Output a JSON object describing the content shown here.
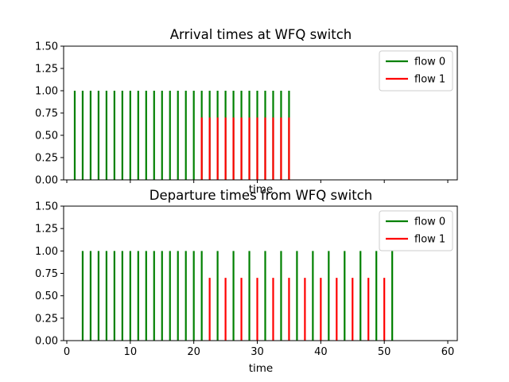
{
  "chart_data": [
    {
      "type": "line",
      "subtype": "vertical-lines",
      "title": "Arrival times at WFQ switch",
      "xlabel": "time",
      "ylabel": "",
      "xlim": [
        -0.5,
        61.5
      ],
      "ylim": [
        0,
        1.5
      ],
      "xticks": [
        0,
        10,
        20,
        30,
        40,
        50,
        60
      ],
      "show_xtick_labels": false,
      "yticks": [
        "0.00",
        "0.25",
        "0.50",
        "0.75",
        "1.00",
        "1.25",
        "1.50"
      ],
      "grid": false,
      "legend_position": "top-right",
      "series": [
        {
          "name": "flow 0",
          "color": "#008000",
          "height": 1.0,
          "x": [
            1.25,
            2.5,
            3.75,
            5.0,
            6.25,
            7.5,
            8.75,
            10.0,
            11.25,
            12.5,
            13.75,
            15.0,
            16.25,
            17.5,
            18.75,
            20.0,
            21.25,
            22.5,
            23.75,
            25.0,
            26.25,
            27.5,
            28.75,
            30.0,
            31.25,
            32.5,
            33.75,
            35.0
          ]
        },
        {
          "name": "flow 1",
          "color": "#ff0000",
          "height": 0.7,
          "x": [
            21.25,
            22.5,
            23.75,
            25.0,
            26.25,
            27.5,
            28.75,
            30.0,
            31.25,
            32.5,
            33.75,
            35.0
          ]
        }
      ]
    },
    {
      "type": "line",
      "subtype": "vertical-lines",
      "title": "Departure times from WFQ switch",
      "xlabel": "time",
      "ylabel": "",
      "xlim": [
        -0.5,
        61.5
      ],
      "ylim": [
        0,
        1.5
      ],
      "xticks": [
        0,
        10,
        20,
        30,
        40,
        50,
        60
      ],
      "show_xtick_labels": true,
      "yticks": [
        "0.00",
        "0.25",
        "0.50",
        "0.75",
        "1.00",
        "1.25",
        "1.50"
      ],
      "grid": false,
      "legend_position": "top-right",
      "series": [
        {
          "name": "flow 0",
          "color": "#008000",
          "height": 1.0,
          "x": [
            2.5,
            3.75,
            5.0,
            6.25,
            7.5,
            8.75,
            10.0,
            11.25,
            12.5,
            13.75,
            15.0,
            16.25,
            17.5,
            18.75,
            20.0,
            21.25,
            23.75,
            26.25,
            28.75,
            31.25,
            33.75,
            36.25,
            38.75,
            41.25,
            43.75,
            46.25,
            48.75,
            51.25
          ]
        },
        {
          "name": "flow 1",
          "color": "#ff0000",
          "height": 0.7,
          "x": [
            22.5,
            25.0,
            27.5,
            30.0,
            32.5,
            35.0,
            37.5,
            40.0,
            42.5,
            45.0,
            47.5,
            50.0
          ]
        }
      ]
    }
  ]
}
